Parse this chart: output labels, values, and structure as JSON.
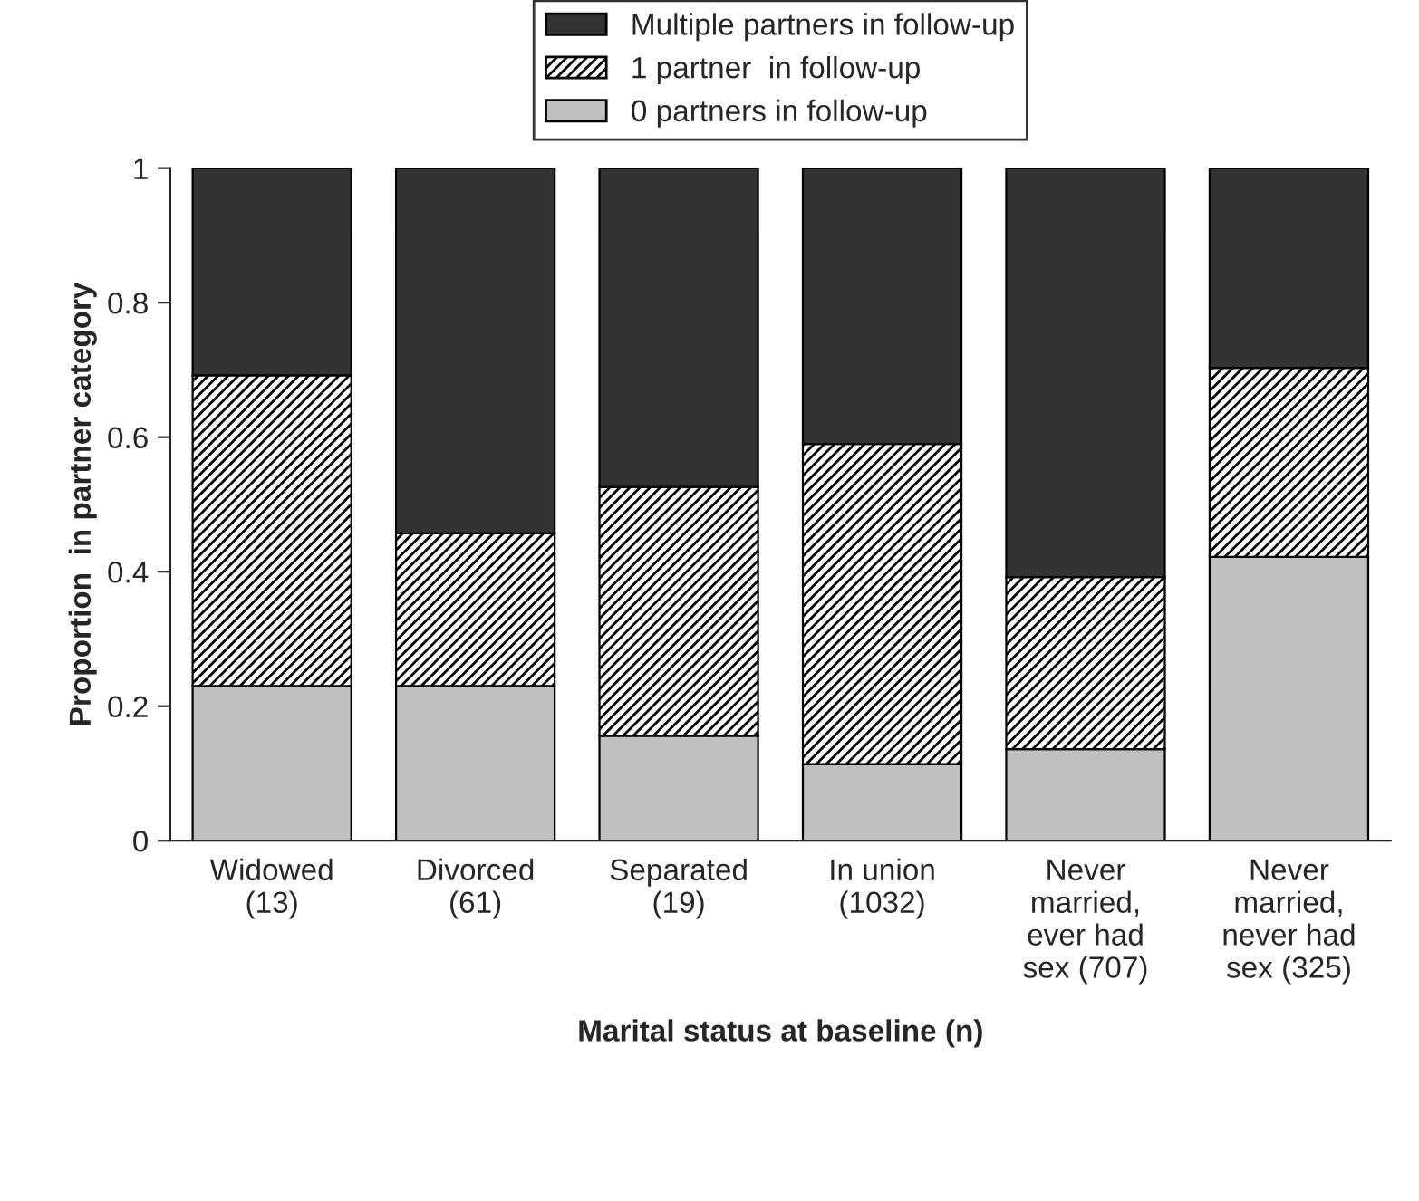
{
  "chart_data": {
    "type": "bar",
    "stacked": true,
    "xlabel": "Marital status at baseline (n)",
    "ylabel": "Proportion  in partner category",
    "categories": [
      "Widowed\n(13)",
      "Divorced\n(61)",
      "Separated\n(19)",
      "In union\n(1032)",
      "Never\nmarried,\never had\nsex (707)",
      "Never\nmarried,\nnever had\nsex (325)"
    ],
    "series": [
      {
        "name": "0 partners in follow-up",
        "color": "#c0c0c0",
        "values": [
          0.23,
          0.23,
          0.156,
          0.114,
          0.136,
          0.422
        ]
      },
      {
        "name": "1 partner  in follow-up",
        "color": "#000000",
        "values": [
          0.462,
          0.227,
          0.37,
          0.476,
          0.256,
          0.281
        ]
      },
      {
        "name": "Multiple partners in follow-up",
        "color": "#333333",
        "values": [
          0.308,
          0.543,
          0.474,
          0.41,
          0.608,
          0.297
        ]
      }
    ],
    "ylim": [
      0,
      1
    ],
    "yticks": [
      0,
      0.2,
      0.4,
      0.6,
      0.8,
      1
    ],
    "grid": false,
    "legend": "top"
  }
}
